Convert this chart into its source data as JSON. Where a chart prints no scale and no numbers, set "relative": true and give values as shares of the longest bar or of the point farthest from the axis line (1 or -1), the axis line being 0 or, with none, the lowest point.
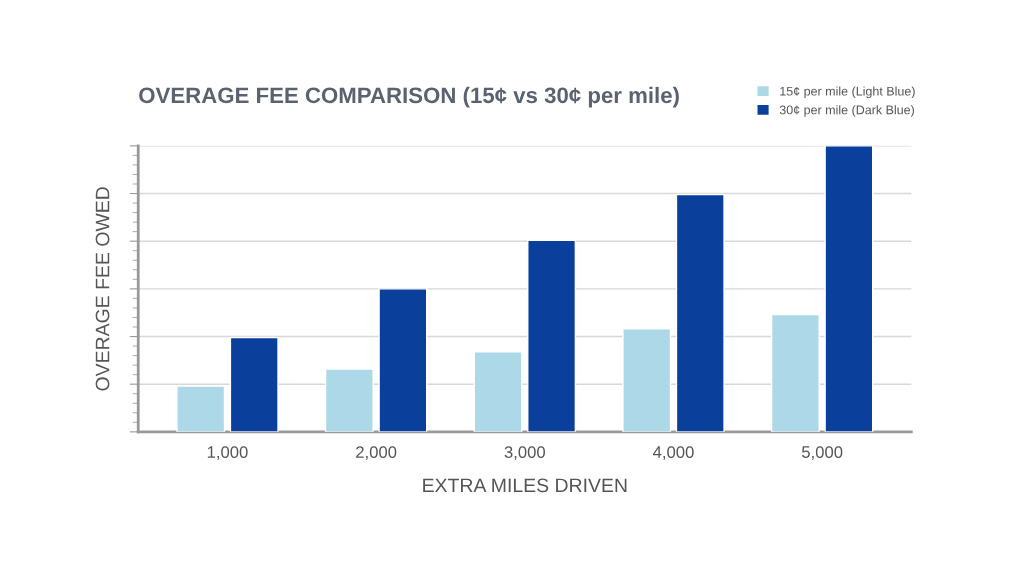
{
  "chart_data": {
    "type": "bar",
    "title": "OVERAGE FEE COMPARISON (15¢ vs 30¢ per mile)",
    "xlabel": "EXTRA MILES DRIVEN",
    "ylabel": "OVERAGE FEE OWED",
    "categories": [
      "1,000",
      "2,000",
      "3,000",
      "4,000",
      "5,000"
    ],
    "series": [
      {
        "name": "15¢ per mile (Light Blue)",
        "color": "#acd8e8",
        "values": [
          0.16,
          0.22,
          0.28,
          0.36,
          0.41
        ]
      },
      {
        "name": "30¢ per mile (Dark Blue)",
        "color": "#0b3f9c",
        "values": [
          0.33,
          0.5,
          0.67,
          0.83,
          1
        ]
      }
    ],
    "relative": true,
    "grid": "y",
    "legend": "top right"
  }
}
